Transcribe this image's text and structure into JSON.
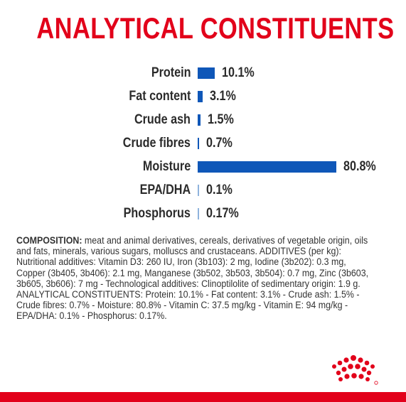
{
  "title": "ANALYTICAL CONSTITUENTS",
  "colors": {
    "accent_red": "#e2001a",
    "bar_blue": "#0f57b8",
    "bar_light_blue": "#8fb3dd"
  },
  "chart_data": {
    "type": "bar",
    "orientation": "horizontal",
    "title": "ANALYTICAL CONSTITUENTS",
    "categories": [
      "Protein",
      "Fat content",
      "Crude ash",
      "Crude fibres",
      "Moisture",
      "EPA/DHA",
      "Phosphorus"
    ],
    "values": [
      10.1,
      3.1,
      1.5,
      0.7,
      80.8,
      0.1,
      0.17
    ],
    "value_labels": [
      "10.1%",
      "3.1%",
      "1.5%",
      "0.7%",
      "80.8%",
      "0.1%",
      "0.17%"
    ],
    "xlim": [
      0,
      80.8
    ],
    "grid": false,
    "legend": "none"
  },
  "composition": {
    "label": "COMPOSITION:",
    "text": " meat and animal derivatives, cereals, derivatives of vegetable origin, oils and fats, minerals, various sugars, molluscs and crustaceans. ADDITIVES (per kg): Nutritional additives: Vitamin D3: 260 IU, Iron (3b103): 2 mg, Iodine (3b202): 0.3 mg, Copper (3b405, 3b406): 2.1 mg, Manganese (3b502, 3b503, 3b504): 0.7 mg, Zinc (3b603, 3b605, 3b606): 7 mg - Technological additives: Clinoptilolite of sedimentary origin: 1.9 g. ANALYTICAL CONSTITUENTS: Protein: 10.1% - Fat content: 3.1% - Crude ash: 1.5% - Crude fibres: 0.7% - Moisture: 80.8% - Vitamin C: 37.5 mg/kg - Vitamin E: 94 mg/kg - EPA/DHA: 0.1% - Phosphorus: 0.17%."
  },
  "logo_icon": "royal-canin-crown-icon"
}
